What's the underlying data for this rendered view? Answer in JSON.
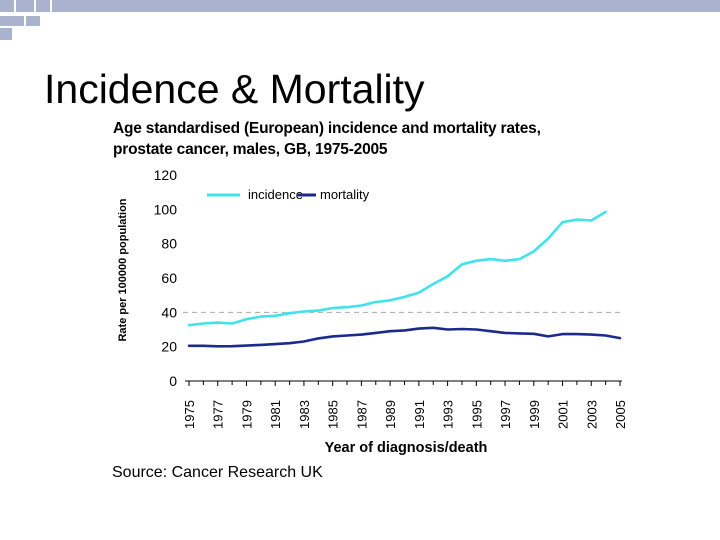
{
  "slide": {
    "title": "Incidence & Mortality",
    "source": "Source: Cancer Research UK"
  },
  "theme": {
    "checker_color": "#A9B2CF",
    "incidence_color": "#40E3EA",
    "mortality_color": "#1C2A8C",
    "dashed_line_color": "#AAAAAA"
  },
  "chart_data": {
    "type": "line",
    "title": "Age standardised (European) incidence and mortality rates, prostate cancer, males, GB, 1975-2005",
    "title_lines": [
      "Age standardised (European) incidence and mortality rates,",
      "prostate cancer, males, GB, 1975-2005"
    ],
    "xlabel": "Year of diagnosis/death",
    "ylabel": "Rate per 100000 population",
    "ylim": [
      0,
      120
    ],
    "yticks": [
      0,
      20,
      40,
      60,
      80,
      100,
      120
    ],
    "xlim": [
      1975,
      2005
    ],
    "xticks": [
      "1975",
      "1977",
      "1979",
      "1981",
      "1983",
      "1985",
      "1987",
      "1989",
      "1991",
      "1993",
      "1995",
      "1997",
      "1999",
      "2001",
      "2003",
      "2005"
    ],
    "reference_line": 40,
    "grid": false,
    "legend_position": "top",
    "series": [
      {
        "name": "incidence",
        "x": [
          1975,
          1976,
          1977,
          1978,
          1979,
          1980,
          1981,
          1982,
          1983,
          1984,
          1985,
          1986,
          1987,
          1988,
          1989,
          1990,
          1991,
          1992,
          1993,
          1994,
          1995,
          1996,
          1997,
          1998,
          1999,
          2000,
          2001,
          2002,
          2003,
          2004
        ],
        "values": [
          32.5,
          33.5,
          34,
          33.5,
          36,
          37.5,
          38,
          39.5,
          40.5,
          41,
          42.5,
          43,
          44,
          46,
          47,
          49,
          51.5,
          56.5,
          61,
          68,
          70,
          71,
          70,
          71,
          75.5,
          83,
          92.5,
          94,
          93.5,
          98.5
        ]
      },
      {
        "name": "mortality",
        "x": [
          1975,
          1976,
          1977,
          1978,
          1979,
          1980,
          1981,
          1982,
          1983,
          1984,
          1985,
          1986,
          1987,
          1988,
          1989,
          1990,
          1991,
          1992,
          1993,
          1994,
          1995,
          1996,
          1997,
          1998,
          1999,
          2000,
          2001,
          2002,
          2003,
          2004,
          2005
        ],
        "values": [
          20.5,
          20.5,
          20.2,
          20.3,
          20.6,
          21,
          21.5,
          22,
          23,
          24.8,
          26,
          26.5,
          27,
          28,
          29,
          29.5,
          30.5,
          31,
          30,
          30.3,
          30,
          29,
          28,
          27.7,
          27.5,
          26,
          27.3,
          27.3,
          27,
          26.5,
          25
        ]
      }
    ]
  }
}
